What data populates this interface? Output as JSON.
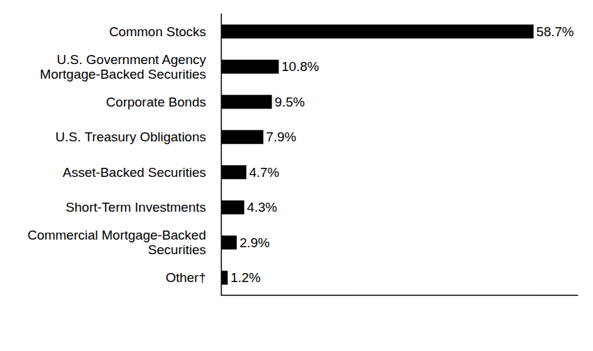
{
  "chart_data": {
    "type": "bar",
    "orientation": "horizontal",
    "categories": [
      "Common Stocks",
      "U.S. Government Agency\nMortgage-Backed Securities",
      "Corporate Bonds",
      "U.S. Treasury Obligations",
      "Asset-Backed Securities",
      "Short-Term Investments",
      "Commercial Mortgage-Backed\nSecurities",
      "Other†"
    ],
    "values": [
      58.7,
      10.8,
      9.5,
      7.9,
      4.7,
      4.3,
      2.9,
      1.2
    ],
    "value_labels": [
      "58.7%",
      "10.8%",
      "9.5%",
      "7.9%",
      "4.7%",
      "4.3%",
      "2.9%",
      "1.2%"
    ],
    "color": "#000000",
    "xlim": [
      0,
      67
    ],
    "grid": false,
    "data_labels": true,
    "tick_labels": "y"
  }
}
